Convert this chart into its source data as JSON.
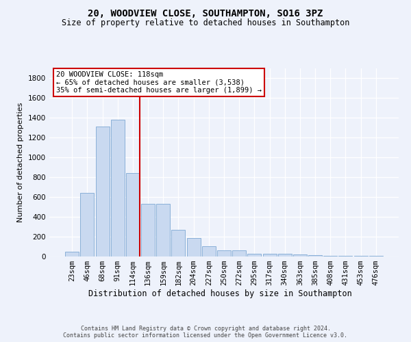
{
  "title": "20, WOODVIEW CLOSE, SOUTHAMPTON, SO16 3PZ",
  "subtitle": "Size of property relative to detached houses in Southampton",
  "xlabel": "Distribution of detached houses by size in Southampton",
  "ylabel": "Number of detached properties",
  "categories": [
    "23sqm",
    "46sqm",
    "68sqm",
    "91sqm",
    "114sqm",
    "136sqm",
    "159sqm",
    "182sqm",
    "204sqm",
    "227sqm",
    "250sqm",
    "272sqm",
    "295sqm",
    "317sqm",
    "340sqm",
    "363sqm",
    "385sqm",
    "408sqm",
    "431sqm",
    "453sqm",
    "476sqm"
  ],
  "values": [
    50,
    640,
    1310,
    1380,
    840,
    530,
    530,
    270,
    185,
    105,
    65,
    65,
    30,
    30,
    25,
    20,
    15,
    10,
    10,
    10,
    10
  ],
  "bar_color": "#c9d9f0",
  "bar_edge_color": "#8ab0d8",
  "vline_color": "#cc0000",
  "annotation_text": "20 WOODVIEW CLOSE: 118sqm\n← 65% of detached houses are smaller (3,538)\n35% of semi-detached houses are larger (1,899) →",
  "ylim": [
    0,
    1900
  ],
  "yticks": [
    0,
    200,
    400,
    600,
    800,
    1000,
    1200,
    1400,
    1600,
    1800
  ],
  "bg_color": "#eef2fb",
  "footer_line1": "Contains HM Land Registry data © Crown copyright and database right 2024.",
  "footer_line2": "Contains public sector information licensed under the Open Government Licence v3.0.",
  "title_fontsize": 10,
  "subtitle_fontsize": 8.5,
  "ylabel_fontsize": 8,
  "xlabel_fontsize": 8.5,
  "tick_fontsize": 7.5,
  "annotation_fontsize": 7.5,
  "footer_fontsize": 6
}
